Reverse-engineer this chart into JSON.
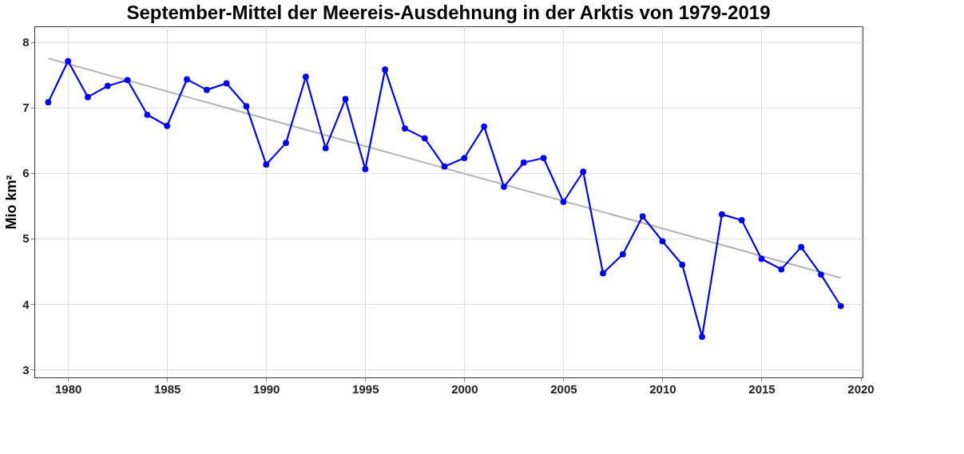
{
  "chart_data": {
    "type": "line",
    "title": "September-Mittel der Meereis-Ausdehnung in der Arktis von 1979-2019",
    "ylabel": "Mio km²",
    "x": [
      1979,
      1980,
      1981,
      1982,
      1983,
      1984,
      1985,
      1986,
      1987,
      1988,
      1989,
      1990,
      1991,
      1992,
      1993,
      1994,
      1995,
      1996,
      1997,
      1998,
      1999,
      2000,
      2001,
      2002,
      2003,
      2004,
      2005,
      2006,
      2007,
      2008,
      2009,
      2010,
      2011,
      2012,
      2013,
      2014,
      2015,
      2016,
      2017,
      2018,
      2019
    ],
    "series": [
      {
        "color": "#b3b3b3",
        "marker": "none",
        "x": [
          1979,
          2019
        ],
        "values": [
          7.75,
          4.4
        ]
      },
      {
        "color": "#0000ff",
        "marker": "circle",
        "values": [
          7.08,
          7.71,
          7.16,
          7.33,
          7.42,
          6.89,
          6.72,
          7.43,
          7.27,
          7.37,
          7.02,
          6.13,
          6.46,
          7.47,
          6.38,
          7.13,
          6.06,
          7.58,
          6.68,
          6.53,
          6.1,
          6.23,
          6.71,
          5.79,
          6.16,
          6.23,
          5.56,
          6.02,
          4.47,
          4.76,
          5.34,
          4.96,
          4.6,
          3.5,
          5.37,
          5.28,
          4.69,
          4.53,
          4.87,
          4.45,
          3.97
        ]
      }
    ],
    "xlim": [
      1978.3,
      2020.1
    ],
    "xticks": [
      1980,
      1985,
      1990,
      1995,
      2000,
      2005,
      2010,
      2015,
      2020
    ],
    "ylim": [
      2.88,
      8.24
    ],
    "yticks": [
      3,
      4,
      5,
      6,
      7,
      8
    ],
    "grid": true,
    "legend": false,
    "line_style": "solid"
  }
}
